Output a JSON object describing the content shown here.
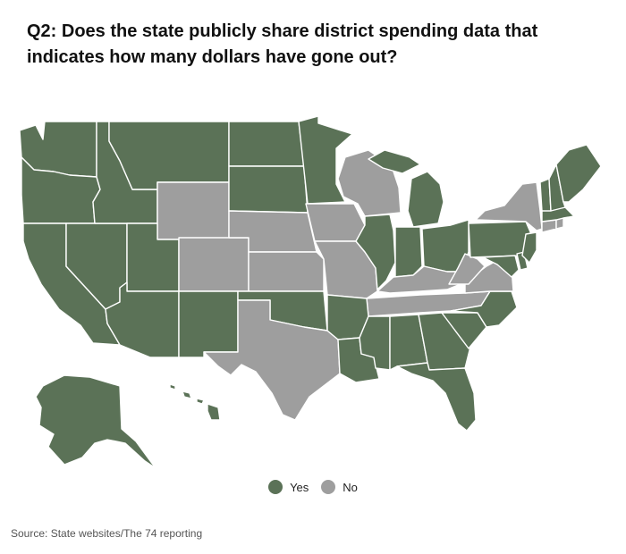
{
  "title": "Q2: Does the state publicly share district spending data that indicates how many dollars have gone out?",
  "legend": [
    {
      "label": "Yes",
      "color": "#5b7257"
    },
    {
      "label": "No",
      "color": "#9e9e9e"
    }
  ],
  "source": "Source: State websites/The 74 reporting",
  "colors": {
    "yes": "#5b7257",
    "no": "#9e9e9e"
  },
  "states_yes": [
    "WA",
    "OR",
    "CA",
    "NV",
    "ID",
    "MT",
    "UT",
    "AZ",
    "NM",
    "ND",
    "SD",
    "OK",
    "MN",
    "MI",
    "IL",
    "IN",
    "OH",
    "AR",
    "LA",
    "MS",
    "AL",
    "GA",
    "FL",
    "SC",
    "NC",
    "PA",
    "NJ",
    "DE",
    "MD",
    "VT",
    "NH",
    "ME",
    "MA",
    "AK",
    "HI"
  ],
  "states_no": [
    "WY",
    "CO",
    "NE",
    "KS",
    "TX",
    "IA",
    "MO",
    "WI",
    "KY",
    "TN",
    "WV",
    "VA",
    "NY",
    "CT",
    "RI"
  ]
}
